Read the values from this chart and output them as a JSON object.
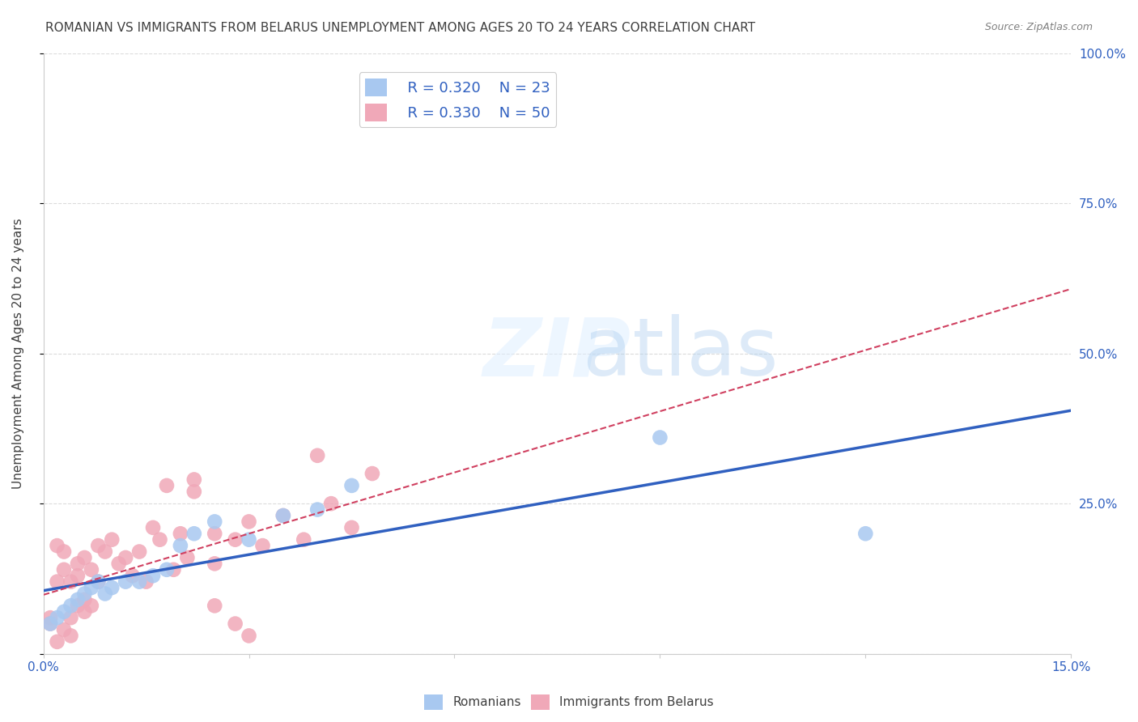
{
  "title": "ROMANIAN VS IMMIGRANTS FROM BELARUS UNEMPLOYMENT AMONG AGES 20 TO 24 YEARS CORRELATION CHART",
  "source": "Source: ZipAtlas.com",
  "xlabel": "",
  "ylabel": "Unemployment Among Ages 20 to 24 years",
  "xlim": [
    0.0,
    0.15
  ],
  "ylim": [
    0.0,
    1.0
  ],
  "xticks": [
    0.0,
    0.03,
    0.06,
    0.09,
    0.12,
    0.15
  ],
  "xtick_labels": [
    "0.0%",
    "",
    "",
    "",
    "",
    "15.0%"
  ],
  "ytick_labels_right": [
    "",
    "25.0%",
    "50.0%",
    "75.0%",
    "100.0%"
  ],
  "yticks_right": [
    0.0,
    0.25,
    0.5,
    0.75,
    1.0
  ],
  "romanians_R": 0.32,
  "romanians_N": 23,
  "belarus_R": 0.33,
  "belarus_N": 50,
  "romanians_color": "#a8c8f0",
  "belarus_color": "#f0a8b8",
  "romanians_line_color": "#3060c0",
  "belarus_line_color": "#d04060",
  "legend_color": "#3060c0",
  "watermark": "ZIPatlas",
  "background_color": "#ffffff",
  "grid_color": "#cccccc",
  "title_color": "#404040",
  "axis_label_color": "#404040",
  "romanians_x": [
    0.001,
    0.002,
    0.003,
    0.004,
    0.005,
    0.006,
    0.007,
    0.008,
    0.009,
    0.01,
    0.012,
    0.014,
    0.016,
    0.018,
    0.02,
    0.022,
    0.025,
    0.03,
    0.035,
    0.04,
    0.045,
    0.09,
    0.12
  ],
  "romanians_y": [
    0.05,
    0.06,
    0.07,
    0.08,
    0.09,
    0.1,
    0.11,
    0.12,
    0.1,
    0.11,
    0.12,
    0.12,
    0.13,
    0.14,
    0.18,
    0.2,
    0.22,
    0.19,
    0.23,
    0.24,
    0.28,
    0.36,
    0.2
  ],
  "belarus_x": [
    0.001,
    0.002,
    0.002,
    0.003,
    0.003,
    0.004,
    0.004,
    0.005,
    0.005,
    0.006,
    0.006,
    0.007,
    0.007,
    0.008,
    0.008,
    0.009,
    0.01,
    0.011,
    0.012,
    0.013,
    0.014,
    0.015,
    0.016,
    0.017,
    0.018,
    0.019,
    0.02,
    0.021,
    0.022,
    0.025,
    0.025,
    0.028,
    0.03,
    0.032,
    0.035,
    0.038,
    0.04,
    0.042,
    0.045,
    0.048,
    0.001,
    0.002,
    0.003,
    0.004,
    0.005,
    0.006,
    0.022,
    0.025,
    0.028,
    0.03
  ],
  "belarus_y": [
    0.05,
    0.18,
    0.12,
    0.14,
    0.17,
    0.06,
    0.12,
    0.13,
    0.15,
    0.16,
    0.07,
    0.08,
    0.14,
    0.18,
    0.12,
    0.17,
    0.19,
    0.15,
    0.16,
    0.13,
    0.17,
    0.12,
    0.21,
    0.19,
    0.28,
    0.14,
    0.2,
    0.16,
    0.29,
    0.2,
    0.15,
    0.19,
    0.22,
    0.18,
    0.23,
    0.19,
    0.33,
    0.25,
    0.21,
    0.3,
    0.06,
    0.02,
    0.04,
    0.03,
    0.08,
    0.09,
    0.27,
    0.08,
    0.05,
    0.03
  ]
}
